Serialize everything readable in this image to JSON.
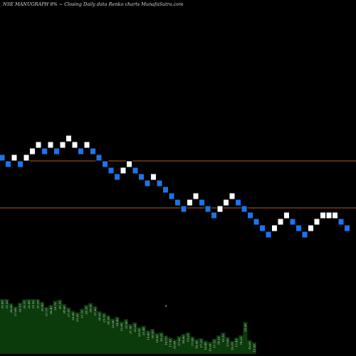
{
  "chart_data": {
    "type": "renko",
    "title": "NSE MANUGRAPH 8% ~   Closing Daily data  Renko  charts MunafaSutra.com",
    "bricks": [
      {
        "dir": "down",
        "hi": 22.6,
        "lo": 22.3
      },
      {
        "dir": "down",
        "hi": 22.3,
        "lo": 22.0
      },
      {
        "dir": "up",
        "hi": 22.6,
        "lo": 22.3
      },
      {
        "dir": "down",
        "hi": 22.3,
        "lo": 22.0
      },
      {
        "dir": "up",
        "hi": 22.6,
        "lo": 22.3
      },
      {
        "dir": "up",
        "hi": 22.9,
        "lo": 22.6
      },
      {
        "dir": "up",
        "hi": 23.2,
        "lo": 22.9
      },
      {
        "dir": "down",
        "hi": 22.9,
        "lo": 22.6
      },
      {
        "dir": "up",
        "hi": 23.2,
        "lo": 22.9
      },
      {
        "dir": "down",
        "hi": 22.9,
        "lo": 22.6
      },
      {
        "dir": "up",
        "hi": 23.2,
        "lo": 22.9
      },
      {
        "dir": "up",
        "hi": 23.5,
        "lo": 23.2
      },
      {
        "dir": "up",
        "hi": 23.2,
        "lo": 22.9
      },
      {
        "dir": "down",
        "hi": 22.9,
        "lo": 22.6
      },
      {
        "dir": "up",
        "hi": 23.2,
        "lo": 22.9
      },
      {
        "dir": "down",
        "hi": 22.9,
        "lo": 22.6
      },
      {
        "dir": "down",
        "hi": 22.6,
        "lo": 22.3
      },
      {
        "dir": "down",
        "hi": 22.3,
        "lo": 22.0
      },
      {
        "dir": "down",
        "hi": 22.0,
        "lo": 21.7
      },
      {
        "dir": "down",
        "hi": 21.7,
        "lo": 21.4
      },
      {
        "dir": "up",
        "hi": 22.0,
        "lo": 21.7
      },
      {
        "dir": "up",
        "hi": 22.3,
        "lo": 22.0
      },
      {
        "dir": "down",
        "hi": 22.0,
        "lo": 21.7
      },
      {
        "dir": "down",
        "hi": 21.7,
        "lo": 21.4
      },
      {
        "dir": "down",
        "hi": 21.4,
        "lo": 21.1
      },
      {
        "dir": "up",
        "hi": 21.7,
        "lo": 21.4
      },
      {
        "dir": "down",
        "hi": 21.4,
        "lo": 21.1
      },
      {
        "dir": "down",
        "hi": 21.1,
        "lo": 20.8
      },
      {
        "dir": "down",
        "hi": 20.8,
        "lo": 20.5
      },
      {
        "dir": "down",
        "hi": 20.5,
        "lo": 20.2
      },
      {
        "dir": "down",
        "hi": 20.2,
        "lo": 19.9
      },
      {
        "dir": "up",
        "hi": 20.5,
        "lo": 20.2
      },
      {
        "dir": "up",
        "hi": 20.8,
        "lo": 20.5
      },
      {
        "dir": "down",
        "hi": 20.5,
        "lo": 20.2
      },
      {
        "dir": "down",
        "hi": 20.2,
        "lo": 19.9
      },
      {
        "dir": "down",
        "hi": 19.9,
        "lo": 19.6
      },
      {
        "dir": "up",
        "hi": 20.2,
        "lo": 19.9
      },
      {
        "dir": "up",
        "hi": 20.5,
        "lo": 20.2
      },
      {
        "dir": "up",
        "hi": 20.8,
        "lo": 20.5
      },
      {
        "dir": "down",
        "hi": 20.5,
        "lo": 20.2
      },
      {
        "dir": "down",
        "hi": 20.2,
        "lo": 19.9
      },
      {
        "dir": "down",
        "hi": 19.9,
        "lo": 19.6
      },
      {
        "dir": "down",
        "hi": 19.6,
        "lo": 19.3
      },
      {
        "dir": "down",
        "hi": 19.3,
        "lo": 19.0
      },
      {
        "dir": "down",
        "hi": 19.0,
        "lo": 18.7
      },
      {
        "dir": "up",
        "hi": 19.3,
        "lo": 19.0
      },
      {
        "dir": "up",
        "hi": 19.6,
        "lo": 19.3
      },
      {
        "dir": "up",
        "hi": 19.9,
        "lo": 19.6
      },
      {
        "dir": "down",
        "hi": 19.6,
        "lo": 19.3
      },
      {
        "dir": "down",
        "hi": 19.3,
        "lo": 19.0
      },
      {
        "dir": "down",
        "hi": 19.0,
        "lo": 18.7
      },
      {
        "dir": "up",
        "hi": 19.3,
        "lo": 19.0
      },
      {
        "dir": "up",
        "hi": 19.6,
        "lo": 19.3
      },
      {
        "dir": "up",
        "hi": 19.9,
        "lo": 19.6
      },
      {
        "dir": "up",
        "hi": 19.9,
        "lo": 19.6
      },
      {
        "dir": "up",
        "hi": 19.9,
        "lo": 19.6
      },
      {
        "dir": "down",
        "hi": 19.6,
        "lo": 19.3
      },
      {
        "dir": "down",
        "hi": 19.3,
        "lo": 19.0
      }
    ],
    "hlines": [
      22.3,
      20.1
    ],
    "volume_labels": [
      "30.80",
      "31.50",
      "28.90",
      "27.80",
      "29.10",
      "30.25",
      "32.40",
      "31.90",
      "30.50",
      "29.40",
      "27.75",
      "28.40",
      "29.75",
      "30.15",
      "28.60",
      "27.50",
      "26.40",
      "25.90",
      "27.10",
      "28.35",
      "29.00",
      "27.90",
      "26.25",
      "25.70",
      "24.90",
      "23.80",
      "24.40",
      "22.80",
      "23.60",
      "21.90",
      "22.50",
      "20.90",
      "21.40",
      "19.80",
      "20.30",
      "18.90",
      "19.25",
      "18.10",
      "17.45",
      "16.80",
      "17.90",
      "18.60",
      "19.20",
      "17.80",
      "16.90",
      "17.25",
      "16.40",
      "15.95",
      "17.10",
      "18.20",
      "19.10",
      "17.60",
      "16.35",
      "17.45",
      "18.20",
      "22.65",
      "16.60",
      "15.80"
    ],
    "volume_marker": "8"
  },
  "colors": {
    "background": "#000000",
    "up_brick": "#ffffff",
    "down_brick": "#1e73e8",
    "brick_border": "#000000",
    "hline": "#b35c1e",
    "volume": "#0b3a0b",
    "text": "#dddddd"
  }
}
